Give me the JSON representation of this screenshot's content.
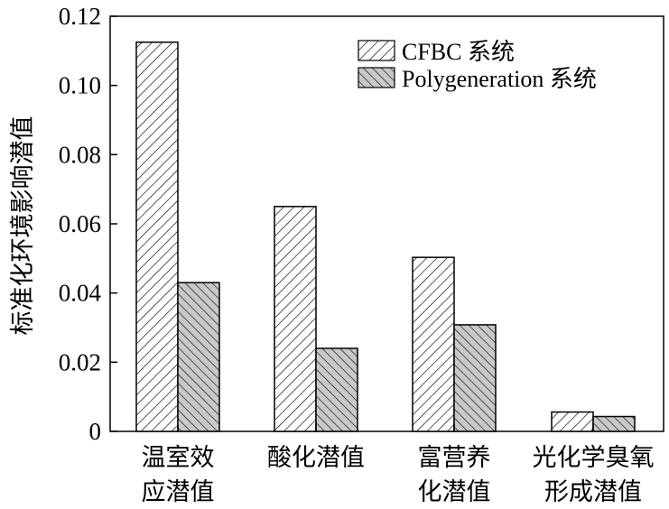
{
  "chart_data": {
    "type": "bar",
    "title": "",
    "xlabel": "",
    "ylabel": "标准化环境影响潜值",
    "ylim": [
      0,
      0.12
    ],
    "yticks": [
      "0",
      "0.02",
      "0.04",
      "0.06",
      "0.08",
      "0.10",
      "0.12"
    ],
    "categories": [
      [
        "温室效",
        "应潜值"
      ],
      [
        "酸化潜值"
      ],
      [
        "富营养",
        "化潜值"
      ],
      [
        "光化学臭氧",
        "形成潜值"
      ]
    ],
    "series": [
      {
        "name": "CFBC 系统",
        "values": [
          0.1125,
          0.065,
          0.0503,
          0.0056
        ]
      },
      {
        "name": "Polygeneration 系统",
        "values": [
          0.043,
          0.024,
          0.0308,
          0.0043
        ]
      }
    ],
    "legend_position": "top-right",
    "grid": false
  }
}
